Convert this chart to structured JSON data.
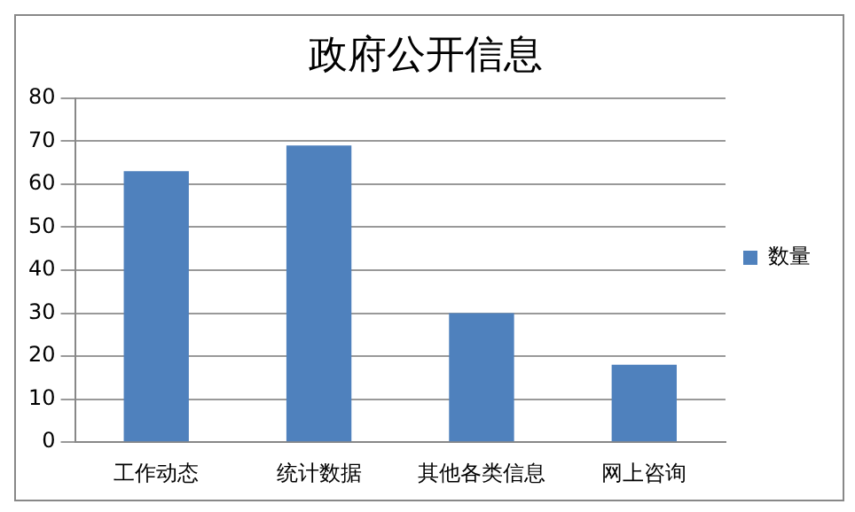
{
  "chart_data": {
    "type": "bar",
    "title": "政府公开信息",
    "categories": [
      "工作动态",
      "统计数据",
      "其他各类信息",
      "网上咨询"
    ],
    "series": [
      {
        "name": "数量",
        "color": "#4f81bd",
        "values": [
          63,
          69,
          30,
          18
        ]
      }
    ],
    "ylim": [
      0,
      80
    ],
    "yticks": [
      0,
      10,
      20,
      30,
      40,
      50,
      60,
      70,
      80
    ],
    "grid": "y",
    "legend": "right"
  }
}
